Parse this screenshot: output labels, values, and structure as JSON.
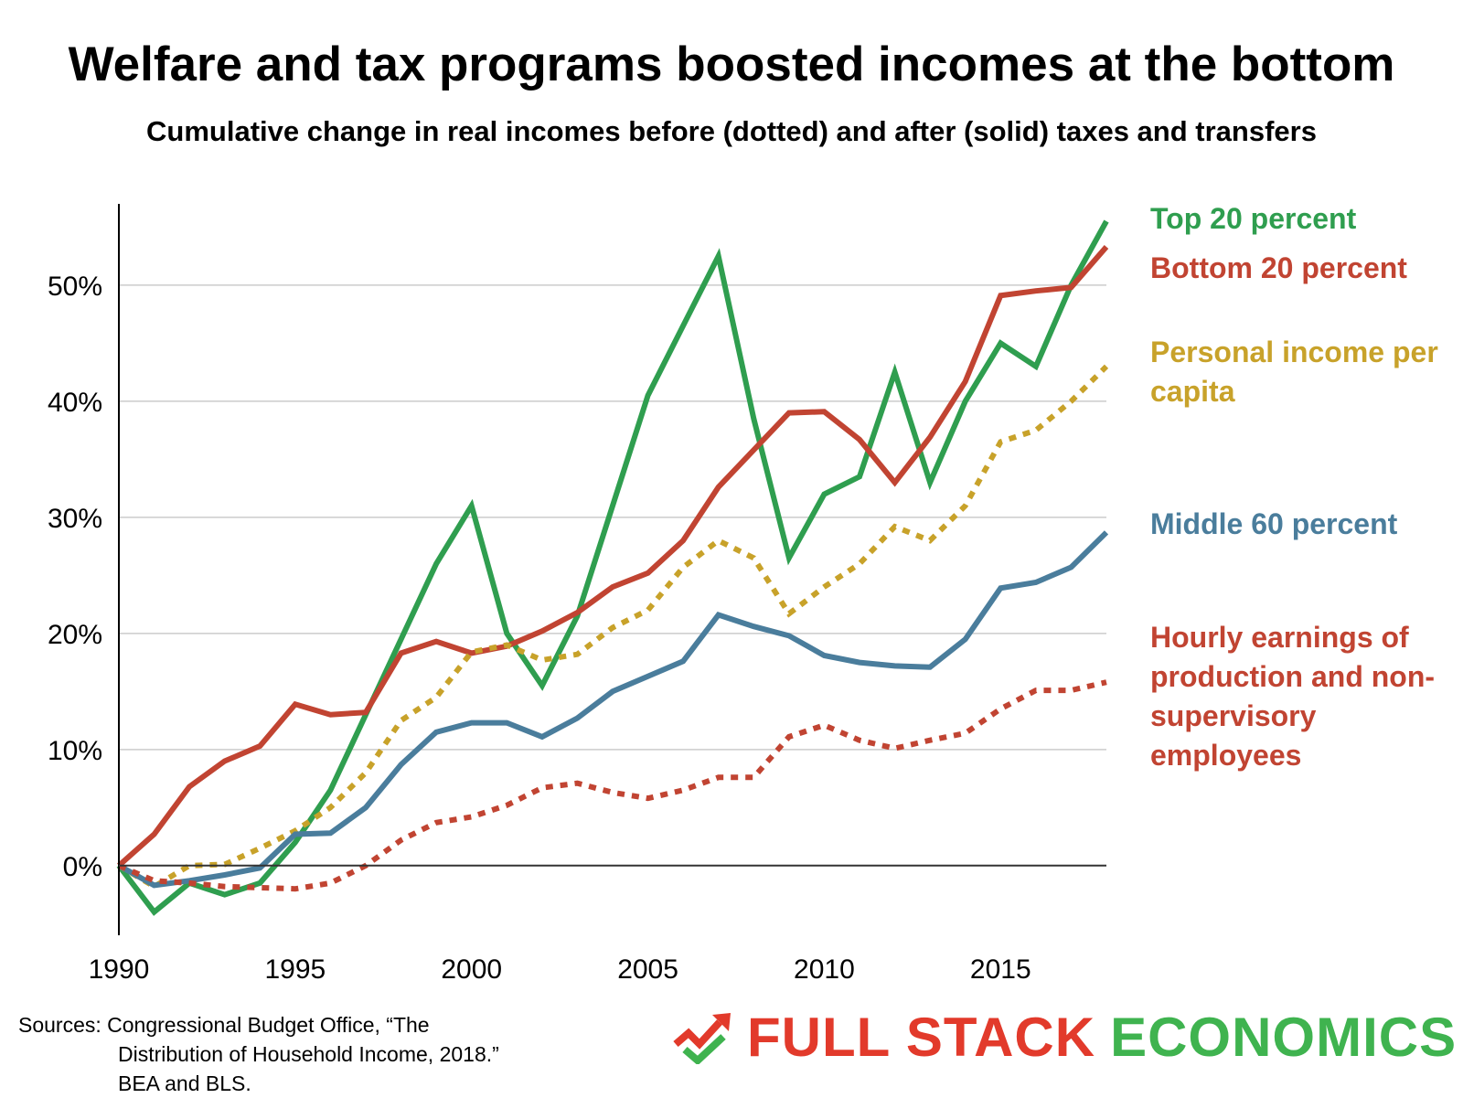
{
  "colors": {
    "top20": "#2f9e4f",
    "bottom20": "#c14432",
    "personal": "#c8a22a",
    "middle60": "#4a7d9c",
    "hourly": "#c14432",
    "axis": "#000000",
    "grid": "#cccccc"
  },
  "chart_data": {
    "type": "line",
    "title": "Welfare and tax programs boosted incomes at the bottom",
    "subtitle": "Cumulative change in real incomes before (dotted) and after (solid) taxes and transfers",
    "xlabel": "",
    "ylabel": "",
    "x": [
      1990,
      1991,
      1992,
      1993,
      1994,
      1995,
      1996,
      1997,
      1998,
      1999,
      2000,
      2001,
      2002,
      2003,
      2004,
      2005,
      2006,
      2007,
      2008,
      2009,
      2010,
      2011,
      2012,
      2013,
      2014,
      2015,
      2016,
      2017,
      2018
    ],
    "xlim": [
      1990,
      2018
    ],
    "ylim": [
      -6,
      57
    ],
    "x_ticks": [
      1990,
      1995,
      2000,
      2005,
      2010,
      2015
    ],
    "x_tick_labels": [
      "1990",
      "1995",
      "2000",
      "2005",
      "2010",
      "2015"
    ],
    "y_ticks": [
      0,
      10,
      20,
      30,
      40,
      50
    ],
    "y_tick_labels": [
      "0%",
      "10%",
      "20%",
      "30%",
      "40%",
      "50%"
    ],
    "grid": true,
    "series": [
      {
        "key": "top20",
        "name": "Top 20 percent",
        "style": "solid",
        "values": [
          0,
          -4,
          -1.5,
          -2.5,
          -1.5,
          2,
          6.5,
          13,
          19.5,
          26,
          31,
          20,
          15.5,
          21.5,
          31,
          40.5,
          46.5,
          52.5,
          38.5,
          26.5,
          32,
          33.5,
          42.5,
          33,
          40,
          45,
          43,
          50,
          55.5
        ]
      },
      {
        "key": "bottom20",
        "name": "Bottom 20 percent",
        "style": "solid",
        "values": [
          0,
          2.7,
          6.8,
          9,
          10.3,
          13.9,
          13,
          13.2,
          18.3,
          19.3,
          18.3,
          18.9,
          20.2,
          21.8,
          24,
          25.2,
          28,
          32.6,
          35.8,
          39,
          39.1,
          36.7,
          33,
          36.9,
          41.7,
          49.1,
          49.5,
          49.8,
          53.3
        ]
      },
      {
        "key": "personal",
        "name": "Personal income per capita",
        "style": "dotted",
        "values": [
          0,
          -1.8,
          0,
          0.1,
          1.5,
          3,
          5,
          8,
          12.5,
          14.5,
          18.4,
          19,
          17.7,
          18.2,
          20.5,
          22,
          25.7,
          28,
          26.5,
          21.7,
          24,
          26,
          29.2,
          28,
          31,
          36.5,
          37.5,
          40,
          43
        ]
      },
      {
        "key": "middle60",
        "name": "Middle 60 percent",
        "style": "solid",
        "values": [
          0,
          -1.7,
          -1.3,
          -0.8,
          -0.2,
          2.7,
          2.8,
          5,
          8.7,
          11.5,
          12.3,
          12.3,
          11.1,
          12.7,
          15,
          16.3,
          17.6,
          21.6,
          20.6,
          19.8,
          18.1,
          17.5,
          17.2,
          17.1,
          19.5,
          23.9,
          24.4,
          25.7,
          28.7
        ]
      },
      {
        "key": "hourly",
        "name": "Hourly earnings of production and non-supervisory employees",
        "style": "dotted",
        "values": [
          0,
          -1.3,
          -1.5,
          -1.8,
          -1.9,
          -2,
          -1.5,
          0,
          2.2,
          3.7,
          4.2,
          5.2,
          6.7,
          7.1,
          6.3,
          5.8,
          6.5,
          7.6,
          7.6,
          11.1,
          12.1,
          10.8,
          10.1,
          10.8,
          11.4,
          13.5,
          15.1,
          15.1,
          15.8
        ]
      }
    ]
  },
  "legend": {
    "top20": "Top 20 percent",
    "bottom20": "Bottom 20 percent",
    "personal": "Personal income per capita",
    "middle60": "Middle 60 percent",
    "hourly": "Hourly earnings of production and non-supervisory employees"
  },
  "sources": {
    "line1": "Sources: Congressional Budget Office, “The",
    "line2": "Distribution of Household Income, 2018.”",
    "line3": "BEA and BLS."
  },
  "logo": {
    "word1": "FULL STACK",
    "word2": "ECONOMICS",
    "icon": "trend-up-arrow-check-icon"
  }
}
